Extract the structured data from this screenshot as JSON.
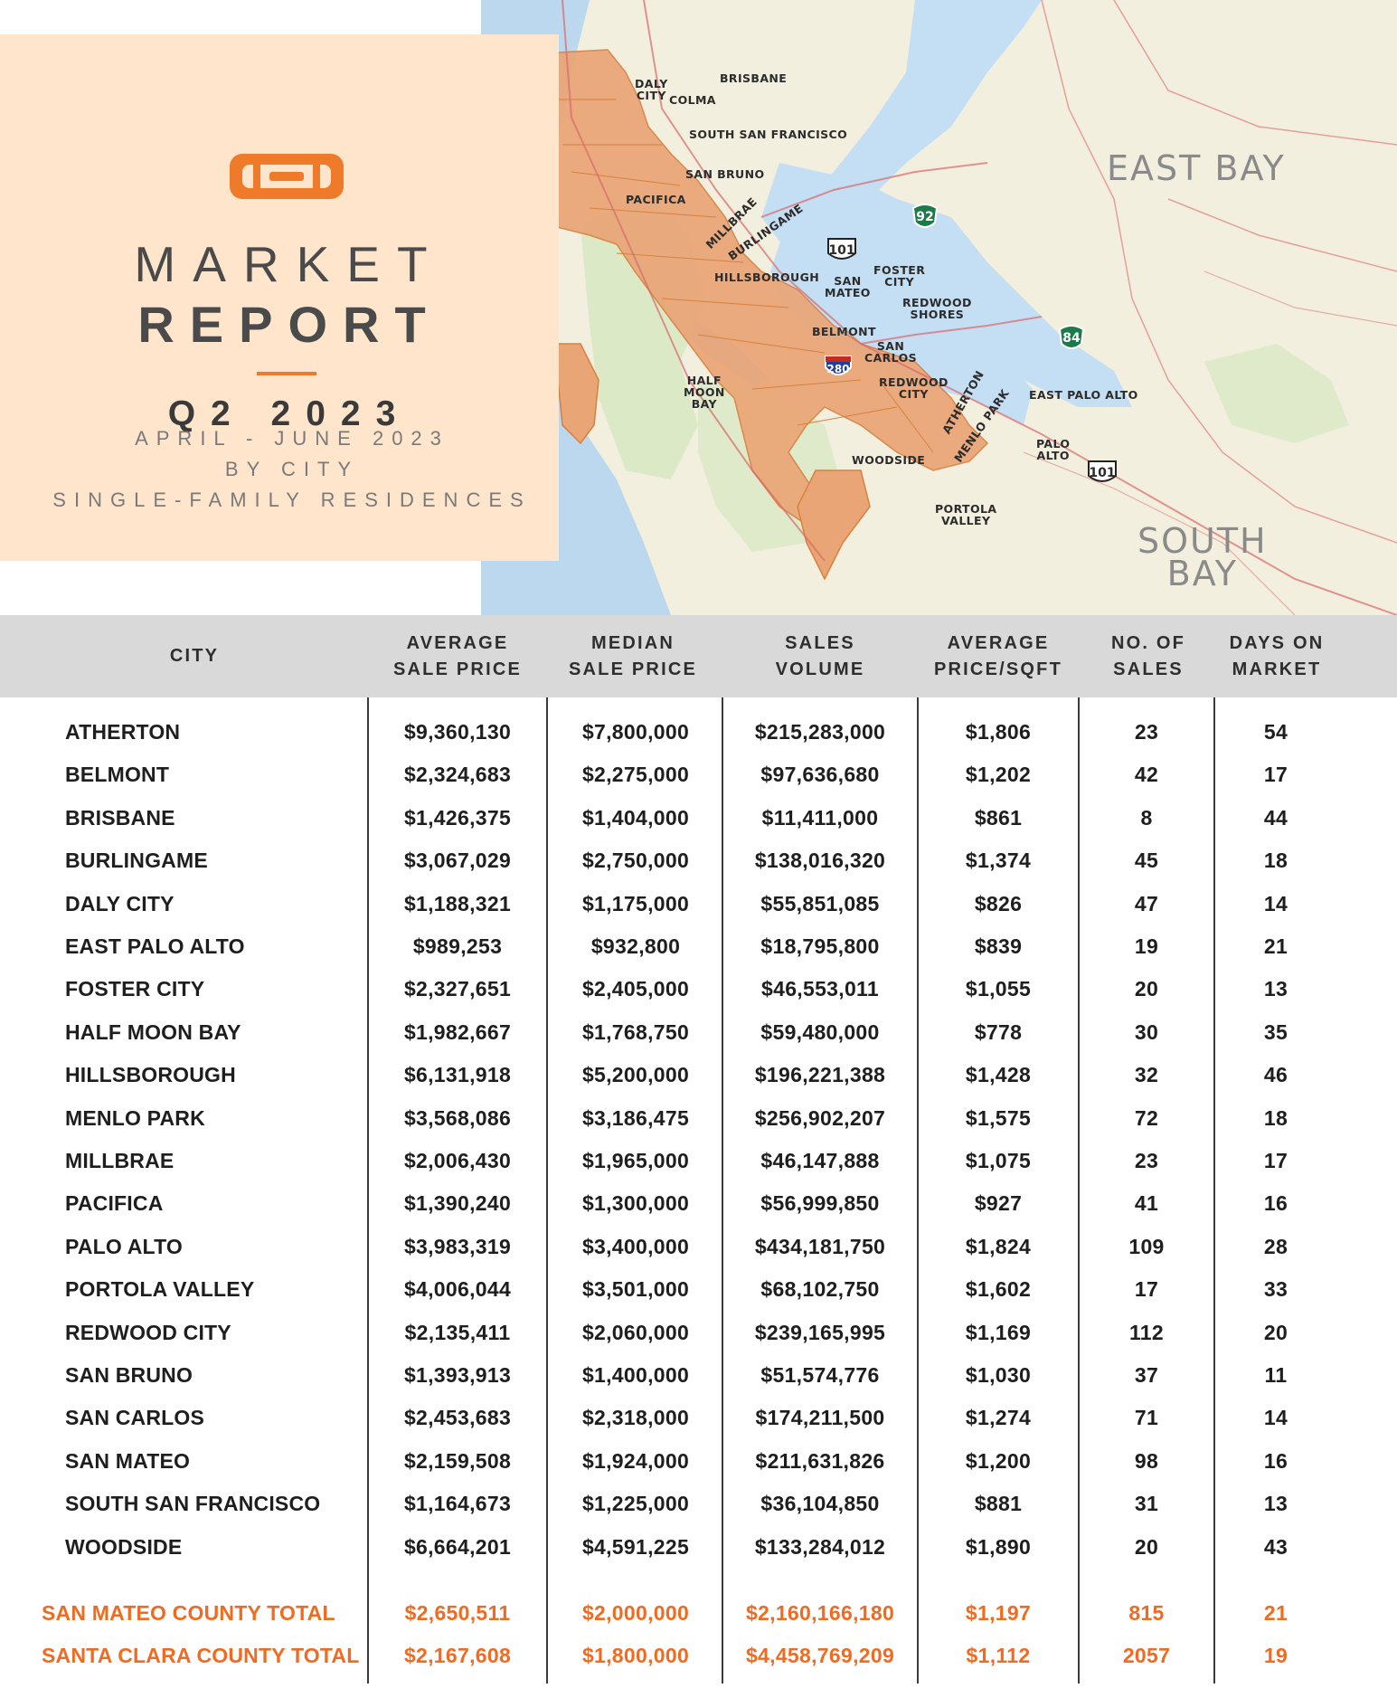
{
  "header": {
    "title_line1": "MARKET",
    "title_line2": "REPORT",
    "quarter": "Q2 2023",
    "subtitle_lines": [
      "APRIL - JUNE 2023",
      "BY CITY",
      "SINGLE-FAMILY RESIDENCES"
    ],
    "accent_color": "#ef7a2a",
    "panel_color": "#fee5cc"
  },
  "map": {
    "regions": [
      "EAST BAY",
      "SOUTH\nBAY"
    ],
    "city_labels": [
      "DALY\nCITY",
      "BRISBANE",
      "COLMA",
      "SOUTH SAN FRANCISCO",
      "SAN BRUNO",
      "PACIFICA",
      "MILLBRAE",
      "BURLINGAME",
      "HILLSBOROUGH",
      "SAN\nMATEO",
      "FOSTER\nCITY",
      "REDWOOD\nSHORES",
      "BELMONT",
      "SAN\nCARLOS",
      "HALF\nMOON\nBAY",
      "REDWOOD\nCITY",
      "ATHERTON",
      "MENLO PARK",
      "EAST PALO ALTO",
      "PALO\nALTO",
      "WOODSIDE",
      "PORTOLA\nVALLEY"
    ],
    "highway_shields": [
      "101",
      "92",
      "84",
      "280",
      "101"
    ]
  },
  "table": {
    "columns": [
      "CITY",
      "AVERAGE\nSALE PRICE",
      "MEDIAN\nSALE PRICE",
      "SALES\nVOLUME",
      "AVERAGE\nPRICE/SQFT",
      "NO. OF\nSALES",
      "DAYS ON\nMARKET"
    ],
    "rows": [
      [
        "ATHERTON",
        "$9,360,130",
        "$7,800,000",
        "$215,283,000",
        "$1,806",
        "23",
        "54"
      ],
      [
        "BELMONT",
        "$2,324,683",
        "$2,275,000",
        "$97,636,680",
        "$1,202",
        "42",
        "17"
      ],
      [
        "BRISBANE",
        "$1,426,375",
        "$1,404,000",
        "$11,411,000",
        "$861",
        "8",
        "44"
      ],
      [
        "BURLINGAME",
        "$3,067,029",
        "$2,750,000",
        "$138,016,320",
        "$1,374",
        "45",
        "18"
      ],
      [
        "DALY CITY",
        "$1,188,321",
        "$1,175,000",
        "$55,851,085",
        "$826",
        "47",
        "14"
      ],
      [
        "EAST PALO ALTO",
        "$989,253",
        "$932,800",
        "$18,795,800",
        "$839",
        "19",
        "21"
      ],
      [
        "FOSTER CITY",
        "$2,327,651",
        "$2,405,000",
        "$46,553,011",
        "$1,055",
        "20",
        "13"
      ],
      [
        "HALF MOON BAY",
        "$1,982,667",
        "$1,768,750",
        "$59,480,000",
        "$778",
        "30",
        "35"
      ],
      [
        "HILLSBOROUGH",
        "$6,131,918",
        "$5,200,000",
        "$196,221,388",
        "$1,428",
        "32",
        "46"
      ],
      [
        "MENLO PARK",
        "$3,568,086",
        "$3,186,475",
        "$256,902,207",
        "$1,575",
        "72",
        "18"
      ],
      [
        "MILLBRAE",
        "$2,006,430",
        "$1,965,000",
        "$46,147,888",
        "$1,075",
        "23",
        "17"
      ],
      [
        "PACIFICA",
        "$1,390,240",
        "$1,300,000",
        "$56,999,850",
        "$927",
        "41",
        "16"
      ],
      [
        "PALO ALTO",
        "$3,983,319",
        "$3,400,000",
        "$434,181,750",
        "$1,824",
        "109",
        "28"
      ],
      [
        "PORTOLA VALLEY",
        "$4,006,044",
        "$3,501,000",
        "$68,102,750",
        "$1,602",
        "17",
        "33"
      ],
      [
        "REDWOOD CITY",
        "$2,135,411",
        "$2,060,000",
        "$239,165,995",
        "$1,169",
        "112",
        "20"
      ],
      [
        "SAN BRUNO",
        "$1,393,913",
        "$1,400,000",
        "$51,574,776",
        "$1,030",
        "37",
        "11"
      ],
      [
        "SAN CARLOS",
        "$2,453,683",
        "$2,318,000",
        "$174,211,500",
        "$1,274",
        "71",
        "14"
      ],
      [
        "SAN MATEO",
        "$2,159,508",
        "$1,924,000",
        "$211,631,826",
        "$1,200",
        "98",
        "16"
      ],
      [
        "SOUTH SAN FRANCISCO",
        "$1,164,673",
        "$1,225,000",
        "$36,104,850",
        "$881",
        "31",
        "13"
      ],
      [
        "WOODSIDE",
        "$6,664,201",
        "$4,591,225",
        "$133,284,012",
        "$1,890",
        "20",
        "43"
      ]
    ],
    "totals": [
      [
        "SAN MATEO COUNTY TOTAL",
        "$2,650,511",
        "$2,000,000",
        "$2,160,166,180",
        "$1,197",
        "815",
        "21"
      ],
      [
        "SANTA CLARA COUNTY TOTAL",
        "$2,167,608",
        "$1,800,000",
        "$4,458,769,209",
        "$1,112",
        "2057",
        "19"
      ]
    ],
    "total_color": "#f06b21",
    "header_bg": "#d9d9d9"
  }
}
